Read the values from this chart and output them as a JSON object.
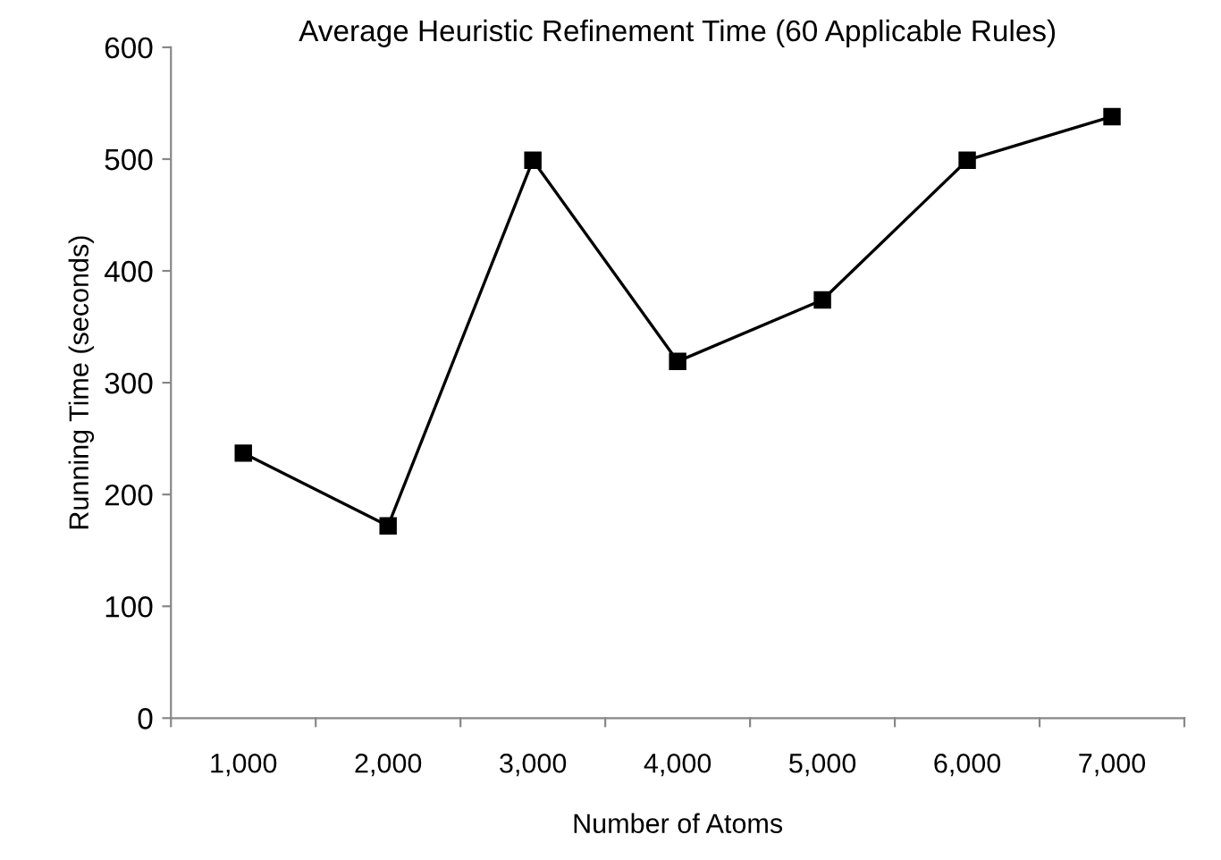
{
  "chart_data": {
    "type": "line",
    "title": "Average Heuristic Refinement Time (60 Applicable Rules)",
    "xlabel": "Number of Atoms",
    "ylabel": "Running Time (seconds)",
    "categories": [
      "1,000",
      "2,000",
      "3,000",
      "4,000",
      "5,000",
      "6,000",
      "7,000"
    ],
    "series": [
      {
        "color": "#000000",
        "values": [
          237,
          172,
          499,
          319,
          374,
          499,
          538
        ]
      }
    ],
    "ylim": [
      0,
      600
    ],
    "yticks": [
      0,
      100,
      200,
      300,
      400,
      500,
      600
    ],
    "grid": false,
    "legend": false,
    "marker": "square",
    "line_style": "solid"
  }
}
